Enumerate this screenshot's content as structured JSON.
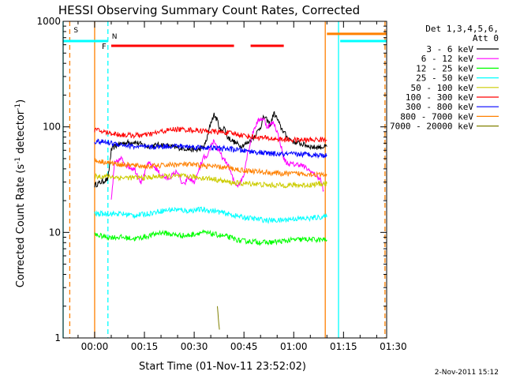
{
  "chart_data": {
    "type": "line",
    "title": "HESSI Observing Summary Count Rates, Corrected",
    "xlabel": "Start Time (01-Nov-11 23:52:02)",
    "ylabel": "Corrected Count Rate (s⁻¹ detector⁻¹)",
    "ylabel_parts": {
      "main": "Corrected Count Rate (s",
      "sup1": "-1",
      "mid": " detector",
      "sup2": "-1",
      "end": ")"
    },
    "y_scale": "log",
    "ylim": [
      1,
      1000
    ],
    "xlim_minutes": [
      -9.5,
      88
    ],
    "x_ticks": [
      {
        "min": 0,
        "label": "00:00"
      },
      {
        "min": 15,
        "label": "00:15"
      },
      {
        "min": 30,
        "label": "00:30"
      },
      {
        "min": 45,
        "label": "00:45"
      },
      {
        "min": 60,
        "label": "01:00"
      },
      {
        "min": 75,
        "label": "01:15"
      },
      {
        "min": 90,
        "label": "01:30"
      }
    ],
    "y_ticks": [
      {
        "value": 1,
        "label": "1"
      },
      {
        "value": 10,
        "label": "10"
      },
      {
        "value": 100,
        "label": "100"
      },
      {
        "value": 1000,
        "label": "1000"
      }
    ],
    "legend": {
      "header1": "Det 1,3,4,5,6,",
      "header2": "Att 0",
      "placement": "right",
      "entries": [
        {
          "label": "3 - 6 keV",
          "color": "#000000"
        },
        {
          "label": "6 - 12 keV",
          "color": "#ff00ff"
        },
        {
          "label": "12 - 25 keV",
          "color": "#00ff00"
        },
        {
          "label": "25 - 50 keV",
          "color": "#00ffff"
        },
        {
          "label": "50 - 100 keV",
          "color": "#cccc00"
        },
        {
          "label": "100 - 300 keV",
          "color": "#ff0000"
        },
        {
          "label": "300 - 800 keV",
          "color": "#0000ff"
        },
        {
          "label": "800 - 7000 keV",
          "color": "#ff8000"
        },
        {
          "label": "7000 - 20000 keV",
          "color": "#808000"
        }
      ]
    },
    "series": [
      {
        "name": "3 - 6 keV",
        "color": "#000000",
        "points": [
          [
            0,
            28
          ],
          [
            2,
            30
          ],
          [
            4,
            32
          ],
          [
            5,
            60
          ],
          [
            6,
            65
          ],
          [
            8,
            70
          ],
          [
            12,
            72
          ],
          [
            16,
            65
          ],
          [
            20,
            68
          ],
          [
            24,
            64
          ],
          [
            28,
            62
          ],
          [
            31,
            60
          ],
          [
            33,
            65
          ],
          [
            34,
            80
          ],
          [
            35,
            110
          ],
          [
            36,
            130
          ],
          [
            37,
            115
          ],
          [
            38,
            90
          ],
          [
            39,
            100
          ],
          [
            40,
            80
          ],
          [
            42,
            72
          ],
          [
            44,
            66
          ],
          [
            46,
            70
          ],
          [
            48,
            80
          ],
          [
            50,
            100
          ],
          [
            51,
            125
          ],
          [
            52,
            115
          ],
          [
            53,
            105
          ],
          [
            54,
            135
          ],
          [
            55,
            120
          ],
          [
            56,
            100
          ],
          [
            57,
            90
          ],
          [
            58,
            80
          ],
          [
            60,
            72
          ],
          [
            63,
            68
          ],
          [
            66,
            64
          ],
          [
            70,
            65
          ]
        ]
      },
      {
        "name": "6 - 12 keV",
        "color": "#ff00ff",
        "points": [
          [
            5,
            20
          ],
          [
            6,
            45
          ],
          [
            8,
            50
          ],
          [
            10,
            42
          ],
          [
            12,
            40
          ],
          [
            14,
            30
          ],
          [
            15,
            35
          ],
          [
            16,
            45
          ],
          [
            18,
            42
          ],
          [
            20,
            35
          ],
          [
            22,
            32
          ],
          [
            24,
            36
          ],
          [
            25,
            38
          ],
          [
            26,
            30
          ],
          [
            27,
            28
          ],
          [
            28,
            33
          ],
          [
            30,
            30
          ],
          [
            31,
            35
          ],
          [
            32,
            44
          ],
          [
            33,
            52
          ],
          [
            34,
            50
          ],
          [
            35,
            66
          ],
          [
            36,
            75
          ],
          [
            37,
            62
          ],
          [
            38,
            55
          ],
          [
            39,
            48
          ],
          [
            40,
            45
          ],
          [
            41,
            37
          ],
          [
            42,
            30
          ],
          [
            43,
            28
          ],
          [
            44,
            30
          ],
          [
            45,
            36
          ],
          [
            46,
            55
          ],
          [
            47,
            72
          ],
          [
            48,
            95
          ],
          [
            49,
            110
          ],
          [
            50,
            120
          ],
          [
            51,
            118
          ],
          [
            52,
            100
          ],
          [
            53,
            105
          ],
          [
            54,
            110
          ],
          [
            55,
            90
          ],
          [
            56,
            70
          ],
          [
            57,
            50
          ],
          [
            58,
            45
          ],
          [
            60,
            44
          ],
          [
            62,
            44
          ],
          [
            64,
            40
          ],
          [
            66,
            36
          ],
          [
            68,
            32
          ],
          [
            69,
            25
          ]
        ]
      },
      {
        "name": "12 - 25 keV",
        "color": "#00ff00",
        "points": [
          [
            0,
            9.5
          ],
          [
            4,
            9
          ],
          [
            8,
            9
          ],
          [
            12,
            8.7
          ],
          [
            16,
            9.2
          ],
          [
            20,
            10
          ],
          [
            24,
            9.5
          ],
          [
            28,
            9.3
          ],
          [
            32,
            10
          ],
          [
            36,
            9.6
          ],
          [
            40,
            9.1
          ],
          [
            44,
            8.3
          ],
          [
            48,
            8.2
          ],
          [
            52,
            8.0
          ],
          [
            56,
            8.2
          ],
          [
            60,
            8.5
          ],
          [
            64,
            8.6
          ],
          [
            68,
            8.5
          ],
          [
            70,
            8.5
          ]
        ]
      },
      {
        "name": "25 - 50 keV",
        "color": "#00ffff",
        "points": [
          [
            0,
            15
          ],
          [
            4,
            15
          ],
          [
            8,
            15
          ],
          [
            12,
            14.5
          ],
          [
            16,
            15
          ],
          [
            20,
            16
          ],
          [
            24,
            16.5
          ],
          [
            28,
            16
          ],
          [
            32,
            16.5
          ],
          [
            36,
            16
          ],
          [
            40,
            15
          ],
          [
            44,
            14
          ],
          [
            48,
            13.5
          ],
          [
            52,
            13
          ],
          [
            56,
            13
          ],
          [
            60,
            13.5
          ],
          [
            64,
            13.5
          ],
          [
            68,
            14
          ],
          [
            70,
            14
          ]
        ]
      },
      {
        "name": "50 - 100 keV",
        "color": "#cccc00",
        "points": [
          [
            0,
            34
          ],
          [
            4,
            34
          ],
          [
            8,
            33
          ],
          [
            12,
            33
          ],
          [
            16,
            33
          ],
          [
            20,
            34
          ],
          [
            24,
            34
          ],
          [
            28,
            34
          ],
          [
            32,
            33
          ],
          [
            36,
            32
          ],
          [
            40,
            30
          ],
          [
            44,
            29
          ],
          [
            48,
            29
          ],
          [
            52,
            28
          ],
          [
            56,
            28
          ],
          [
            60,
            28
          ],
          [
            64,
            28
          ],
          [
            68,
            29
          ],
          [
            70,
            29
          ]
        ]
      },
      {
        "name": "100 - 300 keV",
        "color": "#ff0000",
        "points": [
          [
            0,
            94
          ],
          [
            4,
            88
          ],
          [
            8,
            84
          ],
          [
            12,
            83
          ],
          [
            16,
            84
          ],
          [
            20,
            90
          ],
          [
            24,
            95
          ],
          [
            28,
            94
          ],
          [
            32,
            92
          ],
          [
            36,
            90
          ],
          [
            40,
            88
          ],
          [
            44,
            84
          ],
          [
            48,
            80
          ],
          [
            52,
            78
          ],
          [
            56,
            76
          ],
          [
            60,
            75
          ],
          [
            64,
            75
          ],
          [
            68,
            76
          ],
          [
            70,
            75
          ]
        ]
      },
      {
        "name": "300 - 800 keV",
        "color": "#0000ff",
        "points": [
          [
            0,
            73
          ],
          [
            4,
            71
          ],
          [
            8,
            68
          ],
          [
            12,
            65
          ],
          [
            16,
            64
          ],
          [
            20,
            65
          ],
          [
            24,
            66
          ],
          [
            28,
            65
          ],
          [
            32,
            64
          ],
          [
            36,
            63
          ],
          [
            40,
            62
          ],
          [
            44,
            60
          ],
          [
            48,
            58
          ],
          [
            52,
            56
          ],
          [
            56,
            55
          ],
          [
            60,
            55
          ],
          [
            64,
            55
          ],
          [
            68,
            54
          ],
          [
            70,
            54
          ]
        ]
      },
      {
        "name": "800 - 7000 keV",
        "color": "#ff8000",
        "points": [
          [
            0,
            48
          ],
          [
            4,
            46
          ],
          [
            8,
            44
          ],
          [
            12,
            43
          ],
          [
            16,
            42
          ],
          [
            20,
            43
          ],
          [
            24,
            44
          ],
          [
            28,
            44
          ],
          [
            32,
            43
          ],
          [
            36,
            42
          ],
          [
            40,
            41
          ],
          [
            44,
            39
          ],
          [
            48,
            38
          ],
          [
            52,
            37
          ],
          [
            56,
            36
          ],
          [
            60,
            36
          ],
          [
            64,
            36
          ],
          [
            68,
            35
          ],
          [
            70,
            35
          ]
        ]
      },
      {
        "name": "7000 - 20000 keV",
        "color": "#808000",
        "points": [
          [
            37,
            2.0
          ],
          [
            37.3,
            1.5
          ],
          [
            37.6,
            1.2
          ]
        ]
      }
    ],
    "segments": [
      {
        "color": "#00ffff",
        "y": 650,
        "x": [
          -9.5,
          4
        ]
      },
      {
        "color": "#ff8000",
        "y": 760,
        "x": [
          70,
          88
        ]
      },
      {
        "color": "#00ffff",
        "y": 650,
        "x": [
          74,
          88
        ]
      }
    ],
    "flag_bars": [
      {
        "color": "#ff0000",
        "x": [
          5,
          42
        ]
      },
      {
        "color": "#ff0000",
        "x": [
          47,
          57
        ]
      }
    ],
    "vlines": [
      {
        "x": -7.5,
        "color": "#ff8000",
        "dashed": true,
        "label": "S"
      },
      {
        "x": 4,
        "color": "#00ffff",
        "dashed": true,
        "label": "N"
      },
      {
        "x": 0,
        "color": "#ff8000",
        "dashed": false,
        "label": ""
      },
      {
        "x": 69.5,
        "color": "#ff8000",
        "dashed": false,
        "label": ""
      },
      {
        "x": 73.5,
        "color": "#00ffff",
        "dashed": false,
        "label": ""
      },
      {
        "x": 87.5,
        "color": "#ff8000",
        "dashed": true,
        "label": ""
      },
      {
        "x": -9.5,
        "color": "#00ffff",
        "dashed": false,
        "label": ""
      }
    ],
    "flag_label_F": "F"
  },
  "footer": {
    "date": "2-Nov-2011 15:12"
  }
}
